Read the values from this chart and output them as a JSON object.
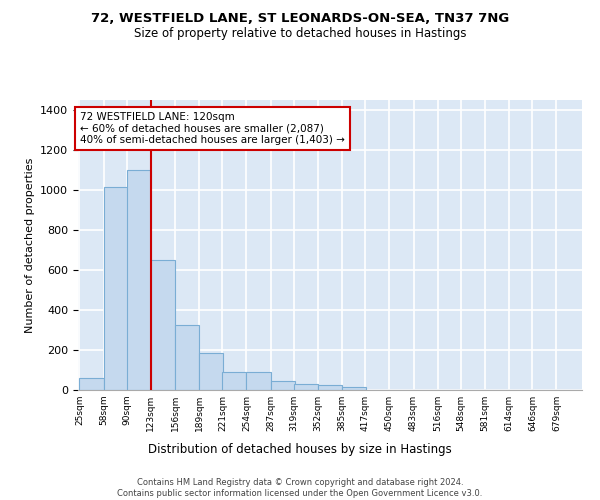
{
  "title_line1": "72, WESTFIELD LANE, ST LEONARDS-ON-SEA, TN37 7NG",
  "title_line2": "Size of property relative to detached houses in Hastings",
  "xlabel": "Distribution of detached houses by size in Hastings",
  "ylabel": "Number of detached properties",
  "bar_color": "#c5d9ee",
  "bar_edge_color": "#7aadd4",
  "background_color": "#dce8f5",
  "grid_color": "#ffffff",
  "annotation_text": "72 WESTFIELD LANE: 120sqm\n← 60% of detached houses are smaller (2,087)\n40% of semi-detached houses are larger (1,403) →",
  "vline_x": 123,
  "vline_color": "#cc0000",
  "annotation_border_color": "#cc0000",
  "categories": [
    "25sqm",
    "58sqm",
    "90sqm",
    "123sqm",
    "156sqm",
    "189sqm",
    "221sqm",
    "254sqm",
    "287sqm",
    "319sqm",
    "352sqm",
    "385sqm",
    "417sqm",
    "450sqm",
    "483sqm",
    "516sqm",
    "548sqm",
    "581sqm",
    "614sqm",
    "646sqm",
    "679sqm"
  ],
  "bin_edges": [
    25,
    58,
    90,
    123,
    156,
    189,
    221,
    254,
    287,
    319,
    352,
    385,
    417,
    450,
    483,
    516,
    548,
    581,
    614,
    646,
    679
  ],
  "bin_width": 33,
  "values": [
    60,
    1015,
    1100,
    650,
    325,
    185,
    88,
    88,
    45,
    28,
    25,
    15,
    0,
    0,
    0,
    0,
    0,
    0,
    0,
    0,
    0
  ],
  "ylim": [
    0,
    1450
  ],
  "yticks": [
    0,
    200,
    400,
    600,
    800,
    1000,
    1200,
    1400
  ],
  "footnote": "Contains HM Land Registry data © Crown copyright and database right 2024.\nContains public sector information licensed under the Open Government Licence v3.0.",
  "fig_width": 6.0,
  "fig_height": 5.0,
  "dpi": 100
}
